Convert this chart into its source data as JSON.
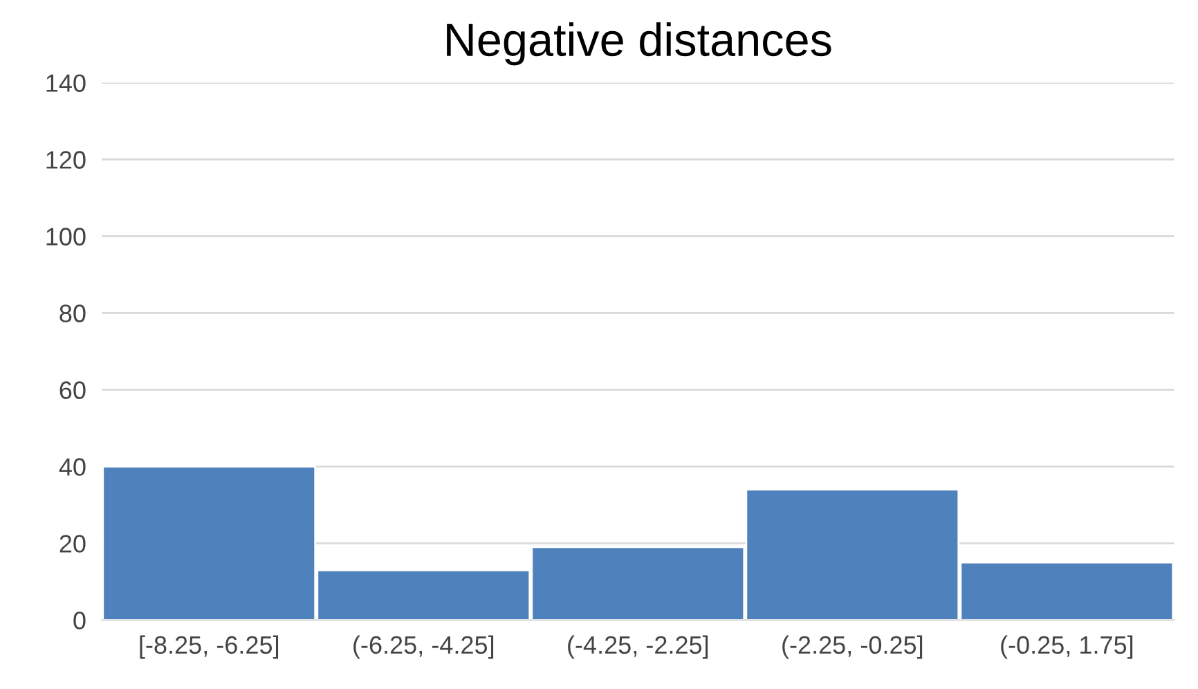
{
  "chart_data": {
    "type": "bar",
    "title": "Negative distances",
    "categories": [
      "[-8.25, -6.25]",
      "(-6.25, -4.25]",
      "(-4.25, -2.25]",
      "(-2.25, -0.25]",
      "(-0.25, 1.75]"
    ],
    "values": [
      40,
      13,
      19,
      34,
      15
    ],
    "color": "#4f81bd",
    "ylim": [
      0,
      140
    ],
    "yticks": [
      0,
      20,
      40,
      60,
      80,
      100,
      120,
      140
    ],
    "grid": "y"
  }
}
